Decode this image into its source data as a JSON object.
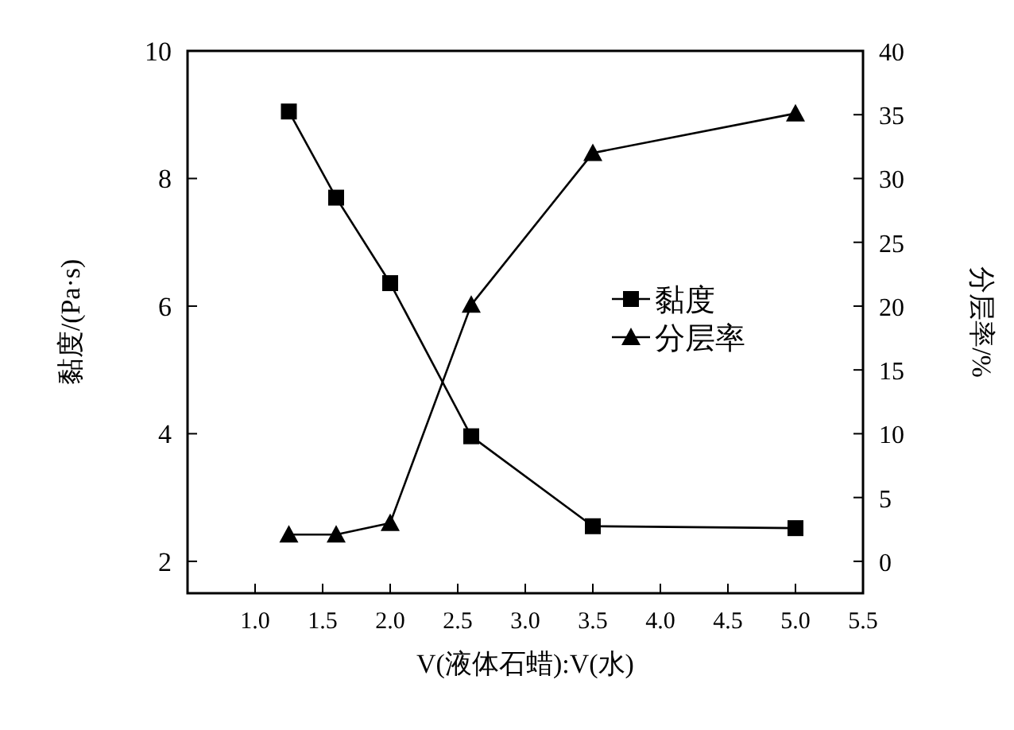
{
  "chart_data": {
    "type": "line",
    "xlabel": "V(液体石蜡):V(水)",
    "ylabel": "黏度/(Pa·s)",
    "y2label": "分层率/%",
    "x": [
      1.25,
      1.6,
      2.0,
      2.6,
      3.5,
      5.0
    ],
    "xlim": [
      0.5,
      5.5
    ],
    "xticks": [
      {
        "value": 1.0,
        "label": "1.0"
      },
      {
        "value": 1.5,
        "label": "1.5"
      },
      {
        "value": 2.0,
        "label": "2.0"
      },
      {
        "value": 2.5,
        "label": "2.5"
      },
      {
        "value": 3.0,
        "label": "3.0"
      },
      {
        "value": 3.5,
        "label": "3.5"
      },
      {
        "value": 4.0,
        "label": "4.0"
      },
      {
        "value": 4.5,
        "label": "4.5"
      },
      {
        "value": 5.0,
        "label": "5.0"
      },
      {
        "value": 5.5,
        "label": "5.5"
      }
    ],
    "ylim": [
      1.5,
      10
    ],
    "yticks": [
      2,
      4,
      6,
      8,
      10
    ],
    "y2lim": [
      -2.5,
      40
    ],
    "y2ticks": [
      0,
      5,
      10,
      15,
      20,
      25,
      30,
      35,
      40
    ],
    "series": [
      {
        "name": "黏度",
        "color": "#000000",
        "marker": "square",
        "values": [
          9.05,
          7.7,
          6.36,
          3.96,
          2.55,
          2.52
        ]
      },
      {
        "name": "分层率",
        "color": "#000000",
        "marker": "triangle",
        "axis": "y2",
        "values": [
          2.1,
          2.1,
          3.0,
          20.1,
          32.0,
          35.1
        ]
      }
    ],
    "grid": false,
    "legend": "right",
    "line_style": "solid"
  }
}
